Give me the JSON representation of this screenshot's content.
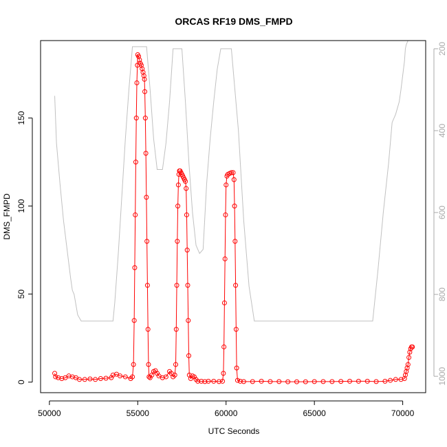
{
  "chart_data": {
    "type": "line",
    "title": "ORCAS RF19 DMS_FMPD",
    "xlabel": "UTC Seconds",
    "ylabel": "DMS_FMPD",
    "xlim": [
      49500,
      71300
    ],
    "ylim": [
      -6,
      194
    ],
    "xticks": [
      50000,
      55000,
      60000,
      65000,
      70000
    ],
    "yticks": [
      0,
      50,
      100,
      150
    ],
    "y2lim": [
      1040,
      180
    ],
    "y2ticks": [
      200,
      400,
      600,
      800,
      1000
    ],
    "grid": false,
    "series": [
      {
        "role": "primary",
        "color": "#ff0000",
        "marker": "open-circle",
        "points": [
          [
            50300,
            5
          ],
          [
            50350,
            3
          ],
          [
            50500,
            2.5
          ],
          [
            50700,
            2
          ],
          [
            50900,
            2.5
          ],
          [
            51100,
            3.5
          ],
          [
            51300,
            3
          ],
          [
            51500,
            2.5
          ],
          [
            51700,
            1.5
          ],
          [
            52000,
            1.5
          ],
          [
            52300,
            1.8
          ],
          [
            52600,
            1.5
          ],
          [
            52900,
            2
          ],
          [
            53200,
            2.2
          ],
          [
            53500,
            2.5
          ],
          [
            53600,
            4
          ],
          [
            53800,
            4.5
          ],
          [
            54000,
            3.5
          ],
          [
            54300,
            3
          ],
          [
            54600,
            2
          ],
          [
            54700,
            3
          ],
          [
            54760,
            10
          ],
          [
            54800,
            35
          ],
          [
            54830,
            65
          ],
          [
            54860,
            95
          ],
          [
            54890,
            125
          ],
          [
            54920,
            150
          ],
          [
            54950,
            170
          ],
          [
            54980,
            180
          ],
          [
            55000,
            186
          ],
          [
            55050,
            185
          ],
          [
            55100,
            183
          ],
          [
            55150,
            181
          ],
          [
            55200,
            180
          ],
          [
            55250,
            178
          ],
          [
            55300,
            176
          ],
          [
            55350,
            174
          ],
          [
            55380,
            172
          ],
          [
            55400,
            165
          ],
          [
            55430,
            150
          ],
          [
            55460,
            130
          ],
          [
            55490,
            105
          ],
          [
            55520,
            80
          ],
          [
            55550,
            55
          ],
          [
            55580,
            30
          ],
          [
            55610,
            10
          ],
          [
            55640,
            3
          ],
          [
            55700,
            2.5
          ],
          [
            55800,
            4
          ],
          [
            55900,
            6
          ],
          [
            56000,
            6.5
          ],
          [
            56100,
            5
          ],
          [
            56200,
            3.5
          ],
          [
            56400,
            2.5
          ],
          [
            56600,
            3
          ],
          [
            56800,
            6
          ],
          [
            56900,
            5
          ],
          [
            57000,
            3
          ],
          [
            57100,
            4
          ],
          [
            57150,
            10
          ],
          [
            57180,
            30
          ],
          [
            57210,
            55
          ],
          [
            57240,
            80
          ],
          [
            57270,
            100
          ],
          [
            57300,
            112
          ],
          [
            57330,
            118
          ],
          [
            57360,
            120
          ],
          [
            57400,
            120
          ],
          [
            57450,
            119
          ],
          [
            57500,
            118
          ],
          [
            57550,
            117
          ],
          [
            57600,
            116
          ],
          [
            57650,
            115
          ],
          [
            57700,
            114
          ],
          [
            57740,
            110
          ],
          [
            57770,
            95
          ],
          [
            57800,
            75
          ],
          [
            57830,
            55
          ],
          [
            57860,
            35
          ],
          [
            57890,
            15
          ],
          [
            57920,
            4
          ],
          [
            58000,
            2
          ],
          [
            58100,
            3.5
          ],
          [
            58200,
            3
          ],
          [
            58300,
            1.5
          ],
          [
            58400,
            0.5
          ],
          [
            58600,
            0.5
          ],
          [
            58800,
            0.3
          ],
          [
            59000,
            0.5
          ],
          [
            59300,
            0.5
          ],
          [
            59600,
            0.3
          ],
          [
            59800,
            0.5
          ],
          [
            59850,
            5
          ],
          [
            59880,
            20
          ],
          [
            59910,
            45
          ],
          [
            59940,
            70
          ],
          [
            59970,
            95
          ],
          [
            60000,
            112
          ],
          [
            60050,
            117
          ],
          [
            60100,
            118
          ],
          [
            60200,
            118.5
          ],
          [
            60300,
            119
          ],
          [
            60400,
            119
          ],
          [
            60450,
            115
          ],
          [
            60480,
            100
          ],
          [
            60510,
            80
          ],
          [
            60540,
            55
          ],
          [
            60570,
            30
          ],
          [
            60600,
            8
          ],
          [
            60650,
            1
          ],
          [
            60800,
            0.5
          ],
          [
            61000,
            0.3
          ],
          [
            61500,
            0.3
          ],
          [
            62000,
            0.5
          ],
          [
            62500,
            0.3
          ],
          [
            63000,
            0.3
          ],
          [
            63500,
            0.2
          ],
          [
            64000,
            0.2
          ],
          [
            64500,
            0.2
          ],
          [
            65000,
            0.3
          ],
          [
            65500,
            0.3
          ],
          [
            66000,
            0.3
          ],
          [
            66500,
            0.4
          ],
          [
            67000,
            0.5
          ],
          [
            67500,
            0.5
          ],
          [
            68000,
            0.5
          ],
          [
            68500,
            0.3
          ],
          [
            69000,
            0.5
          ],
          [
            69300,
            1
          ],
          [
            69600,
            1.5
          ],
          [
            69900,
            1.5
          ],
          [
            70100,
            2
          ],
          [
            70150,
            4
          ],
          [
            70200,
            6
          ],
          [
            70250,
            8
          ],
          [
            70300,
            10
          ],
          [
            70350,
            14
          ],
          [
            70400,
            17
          ],
          [
            70450,
            19
          ],
          [
            70500,
            20
          ],
          [
            70550,
            20
          ]
        ]
      },
      {
        "role": "secondary",
        "color": "#c0c0c0",
        "marker": "none",
        "axis": "right",
        "points": [
          [
            50300,
            315
          ],
          [
            50400,
            430
          ],
          [
            50600,
            530
          ],
          [
            50800,
            620
          ],
          [
            51000,
            690
          ],
          [
            51200,
            760
          ],
          [
            51300,
            790
          ],
          [
            51400,
            800
          ],
          [
            51600,
            850
          ],
          [
            51800,
            865
          ],
          [
            52500,
            865
          ],
          [
            53000,
            865
          ],
          [
            53600,
            865
          ],
          [
            53700,
            820
          ],
          [
            53900,
            700
          ],
          [
            54100,
            560
          ],
          [
            54300,
            420
          ],
          [
            54500,
            300
          ],
          [
            54700,
            195
          ],
          [
            55500,
            195
          ],
          [
            55700,
            300
          ],
          [
            55900,
            420
          ],
          [
            56100,
            495
          ],
          [
            56400,
            495
          ],
          [
            56600,
            430
          ],
          [
            56800,
            330
          ],
          [
            57000,
            200
          ],
          [
            57500,
            200
          ],
          [
            57700,
            330
          ],
          [
            57900,
            480
          ],
          [
            58100,
            600
          ],
          [
            58300,
            680
          ],
          [
            58500,
            700
          ],
          [
            58700,
            690
          ],
          [
            58900,
            530
          ],
          [
            59100,
            420
          ],
          [
            59300,
            330
          ],
          [
            59500,
            250
          ],
          [
            59700,
            200
          ],
          [
            60300,
            200
          ],
          [
            60500,
            300
          ],
          [
            60700,
            400
          ],
          [
            61000,
            620
          ],
          [
            61300,
            780
          ],
          [
            61600,
            865
          ],
          [
            62000,
            865
          ],
          [
            63000,
            865
          ],
          [
            64000,
            865
          ],
          [
            65000,
            865
          ],
          [
            66000,
            865
          ],
          [
            67000,
            865
          ],
          [
            68000,
            865
          ],
          [
            68300,
            865
          ],
          [
            68600,
            740
          ],
          [
            68900,
            600
          ],
          [
            69200,
            480
          ],
          [
            69400,
            380
          ],
          [
            69600,
            360
          ],
          [
            69800,
            330
          ],
          [
            69900,
            300
          ],
          [
            70000,
            265
          ],
          [
            70100,
            230
          ],
          [
            70150,
            200
          ],
          [
            70200,
            190
          ],
          [
            70300,
            175
          ]
        ]
      }
    ]
  }
}
